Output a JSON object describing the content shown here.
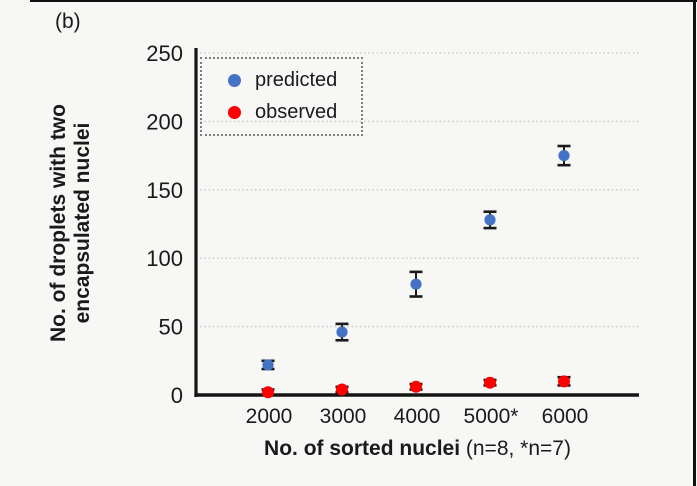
{
  "panel_label": "(b)",
  "colors": {
    "background": "#f7f7f6",
    "predicted": "#4472c4",
    "observed": "#fe0000",
    "grid": "#cfcfcf",
    "axis": "#151515",
    "error_bar": "#1a1a1a"
  },
  "chart_data": {
    "type": "scatter",
    "title": "",
    "categories": [
      "2000",
      "3000",
      "4000",
      "5000*",
      "6000"
    ],
    "series": [
      {
        "name": "predicted",
        "color": "#4472c4",
        "values": [
          22,
          46,
          81,
          128,
          175
        ],
        "errors": [
          3,
          6,
          9,
          6,
          7
        ]
      },
      {
        "name": "observed",
        "color": "#fe0000",
        "values": [
          2,
          4,
          6,
          9,
          10
        ],
        "errors": [
          2,
          2,
          2,
          2,
          3
        ]
      }
    ],
    "ylabel_line1": "No. of droplets with two",
    "ylabel_line2": "encapsulated nuclei",
    "xlabel_bold": "No. of sorted nuclei",
    "xlabel_note": " (n=8, *n=7)",
    "yticks": [
      0,
      50,
      100,
      150,
      200,
      250
    ],
    "ylim": [
      0,
      250
    ],
    "grid": "horizontal-dotted",
    "legend_position": "top-left-inside",
    "legend_border": "dotted"
  }
}
